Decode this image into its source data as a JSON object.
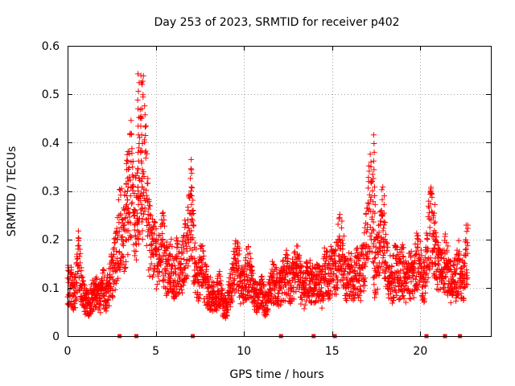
{
  "chart_data": {
    "type": "scatter",
    "title": "Day 253 of 2023, SRMTID for receiver p402",
    "xlabel": "GPS time / hours",
    "ylabel": "SRMTID / TECUs",
    "xlim": [
      0,
      24
    ],
    "ylim": [
      0,
      0.6
    ],
    "x_ticks": [
      0,
      5,
      10,
      15,
      20
    ],
    "y_ticks": [
      0,
      0.1,
      0.2,
      0.3,
      0.4,
      0.5,
      0.6
    ],
    "x_tick_labels": [
      "0",
      "5",
      "10",
      "15",
      "20"
    ],
    "y_tick_labels": [
      "0",
      "0.1",
      "0.2",
      "0.3",
      "0.4",
      "0.5",
      "0.6"
    ],
    "grid": true,
    "marker": "+",
    "color": "#ff0000",
    "series": [
      {
        "name": "SRMTID",
        "note": "dense scatter of 5-minute samples; envelope points listed below are a representative reading",
        "x": [
          0.0,
          0.2,
          0.4,
          0.6,
          0.8,
          1.0,
          1.2,
          1.4,
          1.6,
          1.8,
          2.0,
          2.2,
          2.4,
          2.6,
          2.8,
          3.0,
          3.2,
          3.4,
          3.6,
          3.8,
          4.0,
          4.2,
          4.4,
          4.6,
          4.8,
          5.0,
          5.2,
          5.4,
          5.6,
          5.8,
          6.0,
          6.2,
          6.4,
          6.6,
          6.8,
          7.0,
          7.2,
          7.4,
          7.6,
          7.8,
          8.0,
          8.2,
          8.4,
          8.6,
          8.8,
          9.0,
          9.2,
          9.4,
          9.6,
          9.8,
          10.0,
          10.2,
          10.4,
          10.6,
          10.8,
          11.0,
          11.2,
          11.4,
          11.6,
          11.8,
          12.0,
          12.2,
          12.4,
          12.6,
          12.8,
          13.0,
          13.2,
          13.4,
          13.6,
          13.8,
          14.0,
          14.2,
          14.4,
          14.6,
          14.8,
          15.0,
          15.2,
          15.4,
          15.6,
          15.8,
          16.0,
          16.2,
          16.4,
          16.6,
          16.8,
          17.0,
          17.2,
          17.4,
          17.6,
          17.8,
          18.0,
          18.2,
          18.4,
          18.6,
          18.8,
          19.0,
          19.2,
          19.4,
          19.6,
          19.8,
          20.0,
          20.2,
          20.4,
          20.6,
          20.8,
          21.0,
          21.2,
          21.4,
          21.6,
          21.8,
          22.0,
          22.2,
          22.4,
          22.6
        ],
        "y": [
          0.12,
          0.11,
          0.09,
          0.18,
          0.1,
          0.08,
          0.07,
          0.09,
          0.1,
          0.08,
          0.11,
          0.09,
          0.12,
          0.15,
          0.2,
          0.25,
          0.22,
          0.3,
          0.36,
          0.25,
          0.3,
          0.45,
          0.38,
          0.22,
          0.2,
          0.18,
          0.16,
          0.2,
          0.15,
          0.17,
          0.13,
          0.16,
          0.14,
          0.18,
          0.2,
          0.3,
          0.15,
          0.13,
          0.16,
          0.12,
          0.1,
          0.09,
          0.08,
          0.11,
          0.07,
          0.06,
          0.1,
          0.14,
          0.18,
          0.12,
          0.1,
          0.15,
          0.13,
          0.09,
          0.08,
          0.1,
          0.07,
          0.09,
          0.12,
          0.11,
          0.1,
          0.12,
          0.14,
          0.11,
          0.13,
          0.15,
          0.12,
          0.1,
          0.13,
          0.12,
          0.11,
          0.12,
          0.1,
          0.15,
          0.13,
          0.16,
          0.14,
          0.2,
          0.18,
          0.12,
          0.14,
          0.12,
          0.15,
          0.13,
          0.16,
          0.22,
          0.35,
          0.14,
          0.18,
          0.25,
          0.2,
          0.14,
          0.12,
          0.16,
          0.13,
          0.15,
          0.12,
          0.14,
          0.13,
          0.17,
          0.15,
          0.12,
          0.2,
          0.24,
          0.18,
          0.15,
          0.13,
          0.17,
          0.14,
          0.11,
          0.13,
          0.16,
          0.12,
          0.18
        ]
      }
    ],
    "zero_line_markers_x": [
      2.95,
      3.9,
      7.1,
      12.1,
      13.95,
      15.15,
      20.35,
      21.4,
      22.25
    ]
  }
}
